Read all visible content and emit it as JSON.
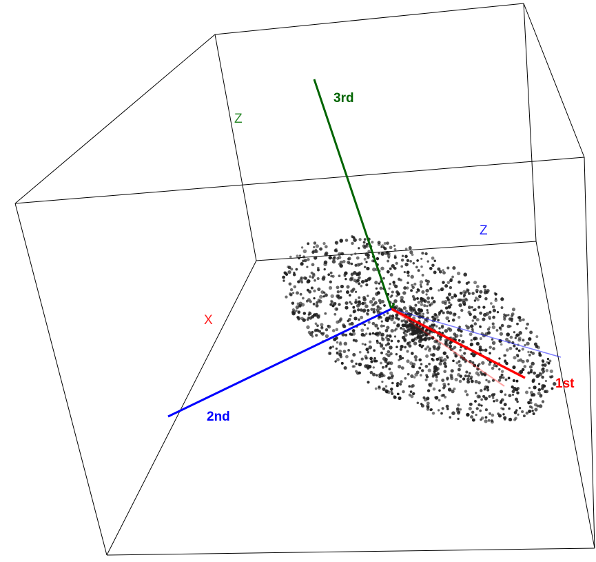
{
  "scene": {
    "principal_axes": {
      "first": {
        "label": "1st",
        "color": "#ff0000"
      },
      "second": {
        "label": "2nd",
        "color": "#0000ff"
      },
      "third": {
        "label": "3rd",
        "color": "#006400"
      }
    },
    "box_axis_labels": {
      "x": {
        "text": "X",
        "color": "#ff2020"
      },
      "z_back": {
        "text": "Z",
        "color": "#2e8b2e"
      },
      "z_floor": {
        "text": "Z",
        "color": "#2020ff"
      }
    },
    "point_cloud": {
      "color": "#202020",
      "point_count": 1500
    }
  }
}
